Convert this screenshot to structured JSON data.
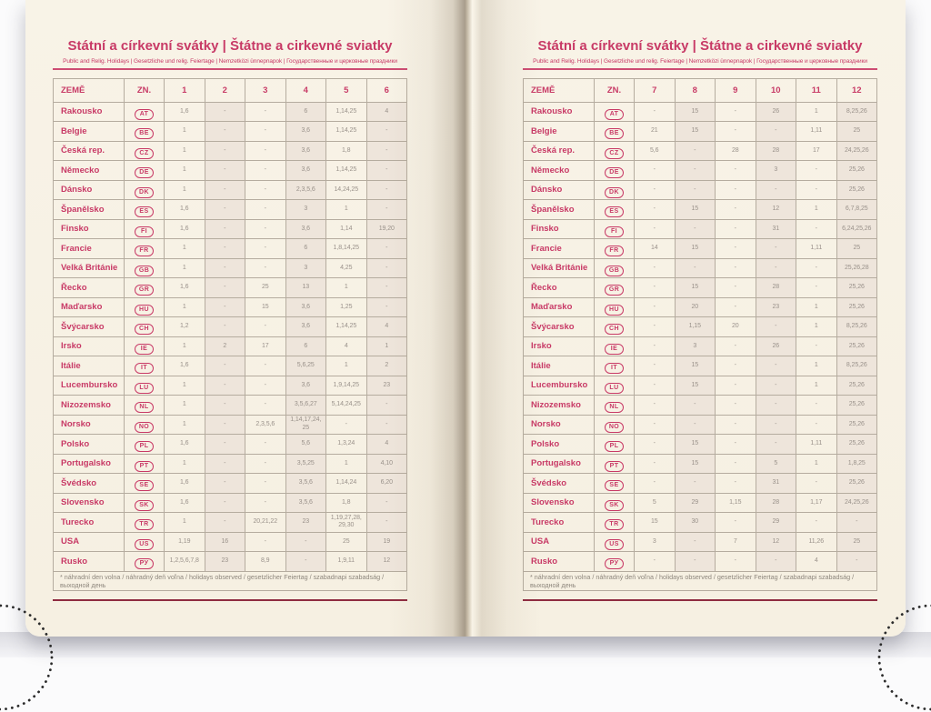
{
  "book": {
    "title": "Státní a církevní svátky | Štátne a cirkevné sviatky",
    "subtitle": "Public and Relig. Holidays | Gesetzliche und relig. Feiertage | Nemzetközi ünnepnapok | Государственные и церковные праздники",
    "footnote": "* náhradní den volna / náhradný deň voľna / holidays observed / gesetzlicher Feiertag / szabadnapi szabadság / выходной день",
    "colors": {
      "accent_pink": "#c83a66",
      "rule_maroon": "#8e2b40",
      "paper_cream": "#f7f1e4",
      "value_gray": "#99918a"
    },
    "header": {
      "country": "ZEMĚ",
      "code": "ZN.",
      "left_months": [
        "1",
        "2",
        "3",
        "4",
        "5",
        "6"
      ],
      "right_months": [
        "7",
        "8",
        "9",
        "10",
        "11",
        "12"
      ]
    },
    "rows": [
      {
        "name": "Rakousko",
        "code": "AT",
        "left": [
          "1, 6",
          "-",
          "-",
          "6",
          "1, 14, 25",
          "4"
        ],
        "right": [
          "-",
          "15",
          "-",
          "26",
          "1",
          "8, 25, 26"
        ]
      },
      {
        "name": "Belgie",
        "code": "BE",
        "left": [
          "1",
          "-",
          "-",
          "3, 6",
          "1, 14, 25",
          "-"
        ],
        "right": [
          "21",
          "15",
          "-",
          "-",
          "1, 11",
          "25"
        ]
      },
      {
        "name": "Česká rep.",
        "code": "CZ",
        "left": [
          "1",
          "-",
          "-",
          "3, 6",
          "1, 8",
          "-"
        ],
        "right": [
          "5, 6",
          "-",
          "28",
          "28",
          "17",
          "24, 25, 26"
        ]
      },
      {
        "name": "Německo",
        "code": "DE",
        "left": [
          "1",
          "-",
          "-",
          "3, 6",
          "1, 14, 25",
          "-"
        ],
        "right": [
          "-",
          "-",
          "-",
          "3",
          "-",
          "25, 26"
        ]
      },
      {
        "name": "Dánsko",
        "code": "DK",
        "left": [
          "1",
          "-",
          "-",
          "2, 3, 5, 6",
          "14, 24, 25",
          "-"
        ],
        "right": [
          "-",
          "-",
          "-",
          "-",
          "-",
          "25, 26"
        ]
      },
      {
        "name": "Španělsko",
        "code": "ES",
        "left": [
          "1, 6",
          "-",
          "-",
          "3",
          "1",
          "-"
        ],
        "right": [
          "-",
          "15",
          "-",
          "12",
          "1",
          "6, 7, 8, 25"
        ]
      },
      {
        "name": "Finsko",
        "code": "FI",
        "left": [
          "1, 6",
          "-",
          "-",
          "3, 6",
          "1, 14",
          "19, 20"
        ],
        "right": [
          "-",
          "-",
          "-",
          "31",
          "-",
          "6, 24, 25, 26"
        ]
      },
      {
        "name": "Francie",
        "code": "FR",
        "left": [
          "1",
          "-",
          "-",
          "6",
          "1, 8, 14, 25",
          "-"
        ],
        "right": [
          "14",
          "15",
          "-",
          "-",
          "1, 11",
          "25"
        ]
      },
      {
        "name": "Velká Británie",
        "code": "GB",
        "left": [
          "1",
          "-",
          "-",
          "3",
          "4, 25",
          "-"
        ],
        "right": [
          "-",
          "-",
          "-",
          "-",
          "-",
          "25, 26, 28"
        ]
      },
      {
        "name": "Řecko",
        "code": "GR",
        "left": [
          "1, 6",
          "-",
          "25",
          "13",
          "1",
          "-"
        ],
        "right": [
          "-",
          "15",
          "-",
          "28",
          "-",
          "25, 26"
        ]
      },
      {
        "name": "Maďarsko",
        "code": "HU",
        "left": [
          "1",
          "-",
          "15",
          "3, 6",
          "1, 25",
          "-"
        ],
        "right": [
          "-",
          "20",
          "-",
          "23",
          "1",
          "25, 26"
        ]
      },
      {
        "name": "Švýcarsko",
        "code": "CH",
        "left": [
          "1, 2",
          "-",
          "-",
          "3, 6",
          "1, 14, 25",
          "4"
        ],
        "right": [
          "-",
          "1, 15",
          "20",
          "-",
          "1",
          "8, 25, 26"
        ]
      },
      {
        "name": "Irsko",
        "code": "IE",
        "left": [
          "1",
          "2",
          "17",
          "6",
          "4",
          "1"
        ],
        "right": [
          "-",
          "3",
          "-",
          "26",
          "-",
          "25, 26"
        ]
      },
      {
        "name": "Itálie",
        "code": "IT",
        "left": [
          "1, 6",
          "-",
          "-",
          "5, 6, 25",
          "1",
          "2"
        ],
        "right": [
          "-",
          "15",
          "-",
          "-",
          "1",
          "8, 25, 26"
        ]
      },
      {
        "name": "Lucembursko",
        "code": "LU",
        "left": [
          "1",
          "-",
          "-",
          "3, 6",
          "1, 9, 14, 25",
          "23"
        ],
        "right": [
          "-",
          "15",
          "-",
          "-",
          "1",
          "25, 26"
        ]
      },
      {
        "name": "Nizozemsko",
        "code": "NL",
        "left": [
          "1",
          "-",
          "-",
          "3, 5, 6, 27",
          "5, 14, 24, 25",
          "-"
        ],
        "right": [
          "-",
          "-",
          "-",
          "-",
          "-",
          "25, 26"
        ]
      },
      {
        "name": "Norsko",
        "code": "NO",
        "left": [
          "1",
          "-",
          "2, 3, 5, 6",
          "1, 14, 17, 24, 25",
          "-",
          "-"
        ],
        "right": [
          "-",
          "-",
          "-",
          "-",
          "-",
          "25, 26"
        ]
      },
      {
        "name": "Polsko",
        "code": "PL",
        "left": [
          "1, 6",
          "-",
          "-",
          "5, 6",
          "1, 3, 24",
          "4"
        ],
        "right": [
          "-",
          "15",
          "-",
          "-",
          "1, 11",
          "25, 26"
        ]
      },
      {
        "name": "Portugalsko",
        "code": "PT",
        "left": [
          "1",
          "-",
          "-",
          "3, 5, 25",
          "1",
          "4, 10"
        ],
        "right": [
          "-",
          "15",
          "-",
          "5",
          "1",
          "1, 8, 25"
        ]
      },
      {
        "name": "Švédsko",
        "code": "SE",
        "left": [
          "1, 6",
          "-",
          "-",
          "3, 5, 6",
          "1, 14, 24",
          "6, 20"
        ],
        "right": [
          "-",
          "-",
          "-",
          "31",
          "-",
          "25, 26"
        ]
      },
      {
        "name": "Slovensko",
        "code": "SK",
        "left": [
          "1, 6",
          "-",
          "-",
          "3, 5, 6",
          "1, 8",
          "-"
        ],
        "right": [
          "5",
          "29",
          "1, 15",
          "28",
          "1, 17",
          "24, 25, 26"
        ]
      },
      {
        "name": "Turecko",
        "code": "TR",
        "left": [
          "1",
          "-",
          "20, 21, 22",
          "23",
          "1, 19, 27, 28, 29, 30",
          "-"
        ],
        "right": [
          "15",
          "30",
          "-",
          "29",
          "-",
          "-"
        ]
      },
      {
        "name": "USA",
        "code": "US",
        "left": [
          "1, 19",
          "16",
          "-",
          "-",
          "25",
          "19"
        ],
        "right": [
          "3",
          "-",
          "7",
          "12",
          "11, 26",
          "25"
        ]
      },
      {
        "name": "Rusko",
        "code": "РУ",
        "left": [
          "1, 2, 5, 6, 7, 8",
          "23",
          "8, 9",
          "-",
          "1, 9, 11",
          "12"
        ],
        "right": [
          "-",
          "-",
          "-",
          "-",
          "4",
          "-"
        ]
      }
    ]
  }
}
